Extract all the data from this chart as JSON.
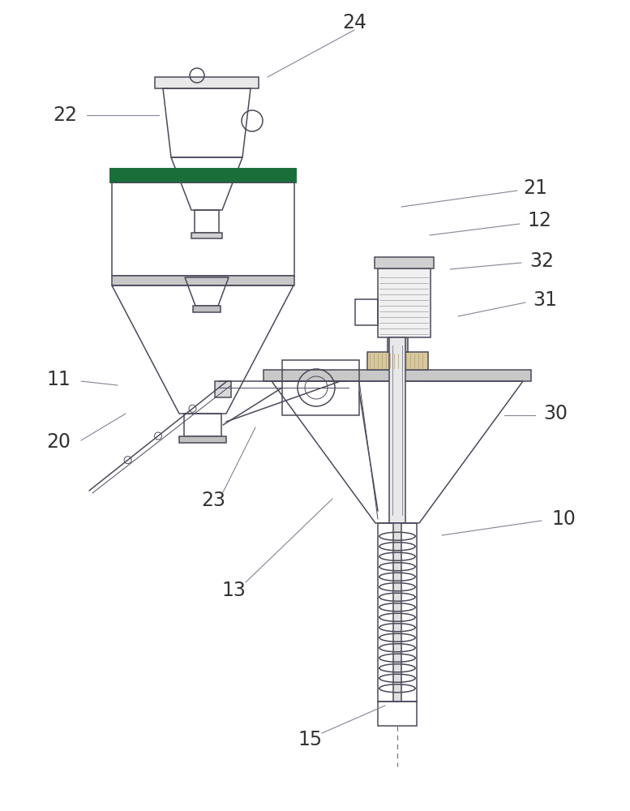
{
  "bg_color": "#ffffff",
  "lc": "#4a4a5a",
  "lc_light": "#8a8a9a",
  "lw_thin": 0.7,
  "lw_med": 1.1,
  "lw_thick": 1.6,
  "font_size": 17,
  "font_color": "#333333"
}
